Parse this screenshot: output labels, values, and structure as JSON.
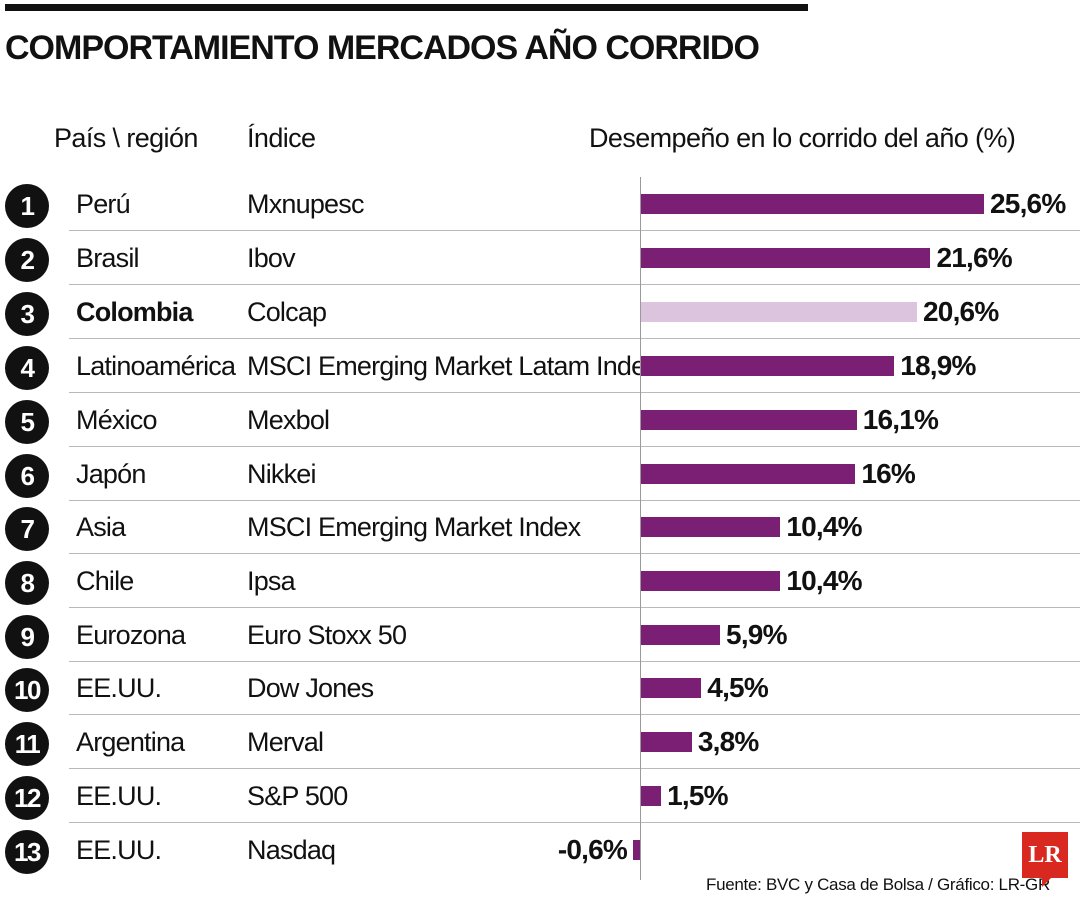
{
  "title": "COMPORTAMIENTO MERCADOS AÑO CORRIDO",
  "headers": {
    "country": "País \\ región",
    "index": "Índice",
    "performance": "Desempeño en lo corrido del año (%)"
  },
  "source": "Fuente: BVC y Casa de Bolsa / Gráfico: LR-GR",
  "logo": "LR",
  "colors": {
    "bar": "#7b1f74",
    "highlight": "#dcc3de",
    "rank_circle": "#111111",
    "logo": "#d9281f"
  },
  "rows": [
    {
      "rank": "1",
      "country": "Perú",
      "index": "Mxnupesc",
      "value_label": "25,6%",
      "highlight": false
    },
    {
      "rank": "2",
      "country": "Brasil",
      "index": "Ibov",
      "value_label": "21,6%",
      "highlight": false
    },
    {
      "rank": "3",
      "country": "Colombia",
      "index": "Colcap",
      "value_label": "20,6%",
      "highlight": true
    },
    {
      "rank": "4",
      "country": "Latinoamérica",
      "index": "MSCI Emerging Market Latam Index",
      "value_label": "18,9%",
      "highlight": false
    },
    {
      "rank": "5",
      "country": "México",
      "index": "Mexbol",
      "value_label": "16,1%",
      "highlight": false
    },
    {
      "rank": "6",
      "country": "Japón",
      "index": "Nikkei",
      "value_label": "16%",
      "highlight": false
    },
    {
      "rank": "7",
      "country": "Asia",
      "index": "MSCI Emerging Market Index",
      "value_label": "10,4%",
      "highlight": false
    },
    {
      "rank": "8",
      "country": "Chile",
      "index": "Ipsa",
      "value_label": "10,4%",
      "highlight": false
    },
    {
      "rank": "9",
      "country": "Eurozona",
      "index": "Euro Stoxx 50",
      "value_label": "5,9%",
      "highlight": false
    },
    {
      "rank": "10",
      "country": "EE.UU.",
      "index": "Dow Jones",
      "value_label": "4,5%",
      "highlight": false
    },
    {
      "rank": "11",
      "country": "Argentina",
      "index": "Merval",
      "value_label": "3,8%",
      "highlight": false
    },
    {
      "rank": "12",
      "country": "EE.UU.",
      "index": "S&P 500",
      "value_label": "1,5%",
      "highlight": false
    },
    {
      "rank": "13",
      "country": "EE.UU.",
      "index": "Nasdaq",
      "value_label": "-0,6%",
      "highlight": false
    }
  ],
  "chart_data": {
    "type": "bar",
    "orientation": "horizontal",
    "title": "COMPORTAMIENTO MERCADOS AÑO CORRIDO",
    "categories": [
      "Perú",
      "Brasil",
      "Colombia",
      "Latinoamérica",
      "México",
      "Japón",
      "Asia",
      "Chile",
      "Eurozona",
      "EE.UU.",
      "Argentina",
      "EE.UU.",
      "EE.UU."
    ],
    "values": [
      25.6,
      21.6,
      20.6,
      18.9,
      16.1,
      16.0,
      10.4,
      10.4,
      5.9,
      4.5,
      3.8,
      1.5,
      -0.6
    ],
    "xlabel": "Desempeño en lo corrido del año (%)",
    "ylabel": "",
    "grid": false,
    "legend": "none"
  }
}
